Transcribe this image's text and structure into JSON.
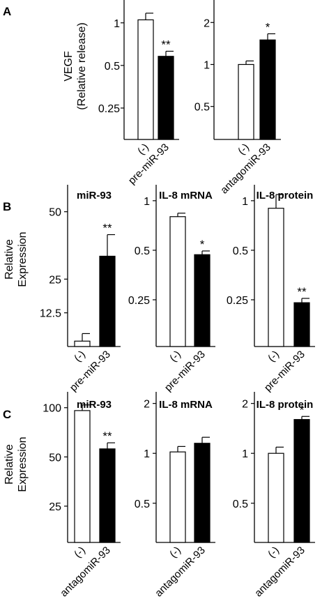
{
  "colors": {
    "open_bar": "#ffffff",
    "filled_bar": "#000000",
    "axis": "#000000"
  },
  "panel_labels": [
    "A",
    "B",
    "C"
  ],
  "chart_data": [
    {
      "type": "bar",
      "panel": "A",
      "ylabel": "VEGF\n(Relative release)",
      "yscale": "log",
      "ylim": [
        0.15,
        1.45
      ],
      "yticks": [
        0.25,
        0.5,
        1
      ],
      "categories": [
        "(-)",
        "pre-miR-93"
      ],
      "values": [
        1.05,
        0.58
      ],
      "errors": [
        0.12,
        0.05
      ],
      "fills": [
        "open",
        "filled"
      ],
      "significance": [
        "",
        "**"
      ]
    },
    {
      "type": "bar",
      "panel": "A",
      "ylabel": "",
      "yscale": "log",
      "ylim": [
        0.29,
        2.9
      ],
      "yticks": [
        0.5,
        1,
        2
      ],
      "categories": [
        "(-)",
        "antagomiR-93"
      ],
      "values": [
        1.0,
        1.5
      ],
      "errors": [
        0.06,
        0.16
      ],
      "fills": [
        "open",
        "filled"
      ],
      "significance": [
        "",
        "*"
      ]
    },
    {
      "type": "bar",
      "panel": "B",
      "title": "miR-93",
      "ylabel": "Relative\nExpression",
      "yscale": "linear",
      "ylim": [
        0,
        60
      ],
      "yticks": [
        12.5,
        25,
        50
      ],
      "categories": [
        "(-)",
        "pre-miR-93"
      ],
      "values": [
        2.0,
        33.5
      ],
      "errors": [
        2.8,
        8.0
      ],
      "fills": [
        "open",
        "filled"
      ],
      "significance": [
        "",
        "**"
      ]
    },
    {
      "type": "bar",
      "panel": "B",
      "title": "IL-8 mRNA",
      "ylabel": "",
      "yscale": "log",
      "ylim": [
        0.13,
        1.25
      ],
      "yticks": [
        0.25,
        0.5,
        1
      ],
      "categories": [
        "(-)",
        "pre-miR-93"
      ],
      "values": [
        0.8,
        0.47
      ],
      "errors": [
        0.04,
        0.025
      ],
      "fills": [
        "open",
        "filled"
      ],
      "significance": [
        "",
        "*"
      ]
    },
    {
      "type": "bar",
      "panel": "B",
      "title": "IL-8 protein",
      "ylabel": "",
      "yscale": "log",
      "ylim": [
        0.13,
        1.25
      ],
      "yticks": [
        0.25,
        0.5,
        1
      ],
      "categories": [
        "(-)",
        "pre-miR-93"
      ],
      "values": [
        0.9,
        0.24
      ],
      "errors": [
        0.19,
        0.015
      ],
      "fills": [
        "open",
        "filled"
      ],
      "significance": [
        "",
        "**"
      ]
    },
    {
      "type": "bar",
      "panel": "C",
      "title": "miR-93",
      "ylabel": "Relative\nExpression",
      "yscale": "log",
      "ylim": [
        15,
        125
      ],
      "yticks": [
        25,
        50,
        100
      ],
      "categories": [
        "(-)",
        "antagomiR-93"
      ],
      "values": [
        96,
        56
      ],
      "errors": [
        8,
        5
      ],
      "fills": [
        "open",
        "filled"
      ],
      "significance": [
        "",
        "**"
      ]
    },
    {
      "type": "bar",
      "panel": "C",
      "title": "IL-8 mRNA",
      "ylabel": "",
      "yscale": "log",
      "ylim": [
        0.29,
        2.35
      ],
      "yticks": [
        0.5,
        1,
        2
      ],
      "categories": [
        "(-)",
        "antagomiR-93"
      ],
      "values": [
        1.02,
        1.15
      ],
      "errors": [
        0.08,
        0.1
      ],
      "fills": [
        "open",
        "filled"
      ],
      "significance": [
        "",
        ""
      ]
    },
    {
      "type": "bar",
      "panel": "C",
      "title": "IL-8 protein",
      "ylabel": "",
      "yscale": "log",
      "ylim": [
        0.29,
        2.35
      ],
      "yticks": [
        0.5,
        1,
        2
      ],
      "categories": [
        "(-)",
        "antagomiR-93"
      ],
      "values": [
        1.0,
        1.6
      ],
      "errors": [
        0.09,
        0.07
      ],
      "fills": [
        "open",
        "filled"
      ],
      "significance": [
        "",
        "*"
      ]
    }
  ]
}
